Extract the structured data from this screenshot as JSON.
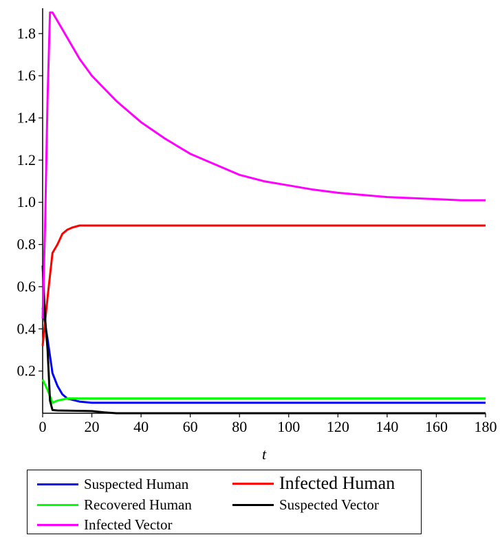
{
  "chart_data": {
    "type": "line",
    "title": "",
    "xlabel": "t",
    "ylabel": "",
    "xlim": [
      0,
      180
    ],
    "ylim": [
      0,
      1.92
    ],
    "xticks": [
      0,
      20,
      40,
      60,
      80,
      100,
      120,
      140,
      160,
      180
    ],
    "yticks": [
      0.2,
      0.4,
      0.6,
      0.8,
      1.0,
      1.2,
      1.4,
      1.6,
      1.8
    ],
    "ytick_labels": [
      "0.2",
      "0.4",
      "0.6",
      "0.8",
      "1.0",
      "1.2",
      "1.4",
      "1.6",
      "1.8"
    ],
    "grid": false,
    "legend_position": "bottom",
    "series": [
      {
        "name": "Suspected Human",
        "color": "#0000ff",
        "x": [
          0,
          2,
          4,
          6,
          8,
          10,
          15,
          20,
          30,
          60,
          100,
          180
        ],
        "y": [
          0.5,
          0.35,
          0.19,
          0.13,
          0.09,
          0.07,
          0.055,
          0.05,
          0.05,
          0.05,
          0.05,
          0.05
        ]
      },
      {
        "name": "Infected Human",
        "color": "#ff0000",
        "x": [
          0,
          2,
          4,
          6,
          8,
          10,
          12,
          15,
          20,
          40,
          80,
          180
        ],
        "y": [
          0.32,
          0.55,
          0.76,
          0.8,
          0.85,
          0.87,
          0.88,
          0.89,
          0.89,
          0.89,
          0.89,
          0.89
        ]
      },
      {
        "name": "Recovered Human",
        "color": "#00ff00",
        "x": [
          0,
          2,
          4,
          6,
          8,
          10,
          15,
          20,
          60,
          180
        ],
        "y": [
          0.16,
          0.11,
          0.05,
          0.06,
          0.065,
          0.07,
          0.07,
          0.07,
          0.07,
          0.07
        ]
      },
      {
        "name": "Suspected Vector",
        "color": "#000000",
        "x": [
          0,
          1,
          2,
          3,
          4,
          6,
          10,
          20,
          25,
          30,
          60,
          180
        ],
        "y": [
          0.7,
          0.45,
          0.3,
          0.06,
          0.015,
          0.013,
          0.012,
          0.01,
          0.004,
          0.0,
          0.0,
          0.0
        ]
      },
      {
        "name": "Infected Vector",
        "color": "#ff00ff",
        "x": [
          0,
          1,
          2,
          3,
          4,
          6,
          10,
          15,
          20,
          30,
          40,
          50,
          60,
          70,
          80,
          90,
          100,
          110,
          120,
          130,
          140,
          150,
          160,
          170,
          175,
          180
        ],
        "y": [
          0.45,
          0.9,
          1.5,
          1.9,
          1.9,
          1.86,
          1.78,
          1.68,
          1.6,
          1.48,
          1.38,
          1.3,
          1.23,
          1.18,
          1.13,
          1.1,
          1.08,
          1.06,
          1.045,
          1.035,
          1.025,
          1.02,
          1.015,
          1.01,
          1.01,
          1.01
        ]
      }
    ]
  },
  "legend": {
    "items": [
      {
        "label": "Suspected Human",
        "color": "#0000ff"
      },
      {
        "label": "Infected Human",
        "color": "#ff0000"
      },
      {
        "label": "Recovered Human",
        "color": "#00ff00"
      },
      {
        "label": "Suspected Vector",
        "color": "#000000"
      },
      {
        "label": "Infected Vector",
        "color": "#ff00ff"
      }
    ]
  }
}
